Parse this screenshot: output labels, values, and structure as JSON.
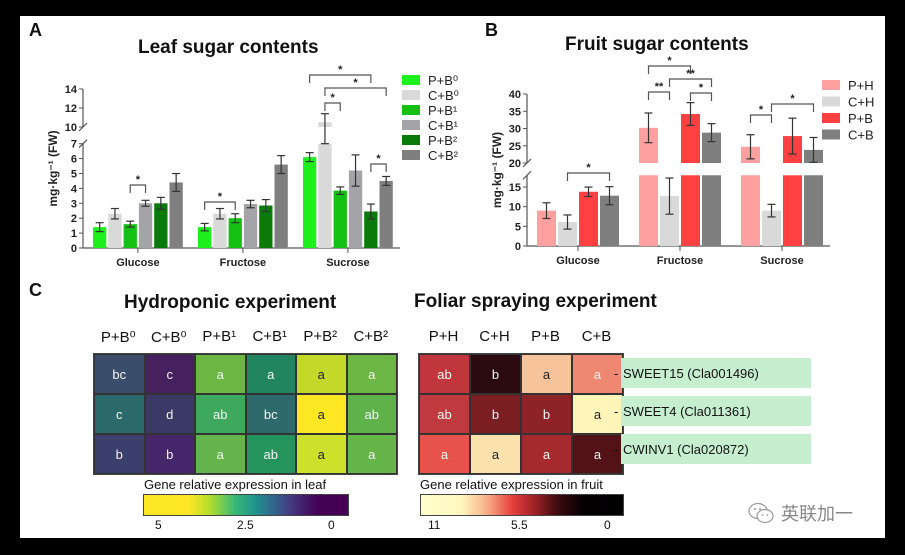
{
  "panels": {
    "A_label": "A",
    "B_label": "B",
    "C_label": "C"
  },
  "chart_data": [
    {
      "type": "bar",
      "title": "Leaf sugar contents",
      "xlabel": "",
      "ylabel": "mg·kg⁻¹ (FW)",
      "categories": [
        "Glucose",
        "Fructose",
        "Sucrose"
      ],
      "axis_break": {
        "lower": [
          0,
          7
        ],
        "upper": [
          10,
          14
        ]
      },
      "yticks_lower": [
        0,
        1,
        2,
        3,
        4,
        5,
        6,
        7
      ],
      "yticks_upper": [
        10,
        12,
        14
      ],
      "legend_position": "right",
      "series": [
        {
          "name": "P+B⁰",
          "color": "#1ef01e",
          "values": [
            1.4,
            1.4,
            6.1
          ],
          "errors": [
            0.3,
            0.25,
            0.3
          ]
        },
        {
          "name": "C+B⁰",
          "color": "#d9d9d9",
          "values": [
            2.3,
            2.3,
            10.5
          ],
          "errors": [
            0.35,
            0.35,
            0.9
          ]
        },
        {
          "name": "P+B¹",
          "color": "#13c013",
          "values": [
            1.6,
            2.0,
            3.85
          ],
          "errors": [
            0.2,
            0.3,
            0.25
          ]
        },
        {
          "name": "C+B¹",
          "color": "#a3a3a8",
          "values": [
            3.0,
            2.95,
            5.2
          ],
          "errors": [
            0.2,
            0.25,
            1.05
          ]
        },
        {
          "name": "P+B²",
          "color": "#0a7a0a",
          "values": [
            3.0,
            2.85,
            2.45
          ],
          "errors": [
            0.4,
            0.4,
            0.5
          ]
        },
        {
          "name": "C+B²",
          "color": "#7f7f7f",
          "values": [
            4.4,
            5.6,
            4.5
          ],
          "errors": [
            0.6,
            0.6,
            0.3
          ]
        }
      ],
      "significance": [
        {
          "category": "Glucose",
          "from": "P+B¹",
          "to": "C+B¹",
          "label": "*"
        },
        {
          "category": "Fructose",
          "from": "P+B⁰",
          "to": "P+B¹",
          "label": "*"
        },
        {
          "category": "Sucrose",
          "from": "P+B⁰",
          "to": "P+B²",
          "label": "*"
        },
        {
          "category": "Sucrose",
          "from": "C+B⁰",
          "to": "C+B²",
          "label": "*"
        },
        {
          "category": "Sucrose",
          "from": "C+B⁰",
          "to": "P+B¹",
          "label": "*"
        },
        {
          "category": "Sucrose",
          "from": "P+B²",
          "to": "C+B²",
          "label": "*"
        }
      ]
    },
    {
      "type": "bar",
      "title": "Fruit sugar contents",
      "xlabel": "",
      "ylabel": "mg·kg⁻¹ (FW)",
      "categories": [
        "Glucose",
        "Fructose",
        "Sucrose"
      ],
      "axis_break": {
        "lower": [
          0,
          18
        ],
        "upper": [
          20,
          40
        ]
      },
      "yticks_lower": [
        0,
        5,
        10,
        15
      ],
      "yticks_upper": [
        20,
        25,
        30,
        35,
        40
      ],
      "legend_position": "right",
      "series": [
        {
          "name": "P+H",
          "color": "#ffa0a0",
          "values": [
            9.0,
            30.2,
            24.7
          ],
          "errors": [
            2.0,
            4.3,
            3.5
          ]
        },
        {
          "name": "C+H",
          "color": "#d9d9d9",
          "values": [
            6.1,
            12.7,
            9.0
          ],
          "errors": [
            1.8,
            4.6,
            1.6
          ]
        },
        {
          "name": "P+B",
          "color": "#ff4040",
          "values": [
            13.8,
            34.2,
            27.8
          ],
          "errors": [
            1.2,
            3.3,
            5.2
          ]
        },
        {
          "name": "C+B",
          "color": "#7f7f7f",
          "values": [
            12.8,
            28.8,
            23.8
          ],
          "errors": [
            2.3,
            2.6,
            3.6
          ]
        }
      ],
      "significance": [
        {
          "category": "Glucose",
          "from": "C+H",
          "to": "C+B",
          "label": "*"
        },
        {
          "category": "Fructose",
          "from": "P+H",
          "to": "C+H",
          "label": "**"
        },
        {
          "category": "Fructose",
          "from": "P+H",
          "to": "P+B",
          "label": "*"
        },
        {
          "category": "Fructose",
          "from": "C+H",
          "to": "C+B",
          "label": "**"
        },
        {
          "category": "Fructose",
          "from": "P+B",
          "to": "C+B",
          "label": "*"
        },
        {
          "category": "Sucrose",
          "from": "P+H",
          "to": "C+H",
          "label": "*"
        },
        {
          "category": "Sucrose",
          "from": "C+H",
          "to": "C+B",
          "label": "*"
        }
      ]
    },
    {
      "type": "heatmap",
      "title": "Hydroponic experiment",
      "columns": [
        "P+B⁰",
        "C+B⁰",
        "P+B¹",
        "C+B¹",
        "P+B²",
        "C+B²"
      ],
      "rows": [
        "SWEET15 (Cla001496)",
        "SWEET4 (Cla011361)",
        "CWINV1 (Cla020872)"
      ],
      "colors": [
        [
          "#3a4d6b",
          "#46205f",
          "#6cb644",
          "#21865f",
          "#c3d92a",
          "#6cb644"
        ],
        [
          "#2b6a6a",
          "#3b3a66",
          "#3ea85c",
          "#2e6a6b",
          "#fce722",
          "#5fb24a"
        ],
        [
          "#3b3f6e",
          "#45266a",
          "#64b54c",
          "#24945c",
          "#cde02a",
          "#66b548"
        ]
      ],
      "letters": [
        [
          "bc",
          "c",
          "a",
          "a",
          "a",
          "a"
        ],
        [
          "c",
          "d",
          "ab",
          "bc",
          "a",
          "ab"
        ],
        [
          "b",
          "b",
          "a",
          "ab",
          "a",
          "a"
        ]
      ],
      "colorbar": {
        "title": "Gene relative expression in leaf",
        "ticks": [
          "5",
          "2.5",
          "0"
        ],
        "range": [
          5,
          0
        ]
      }
    },
    {
      "type": "heatmap",
      "title": "Foliar spraying experiment",
      "columns": [
        "P+H",
        "C+H",
        "P+B",
        "C+B"
      ],
      "rows": [
        "SWEET15 (Cla001496)",
        "SWEET4 (Cla011361)",
        "CWINV1 (Cla020872)"
      ],
      "colors": [
        [
          "#c0363c",
          "#2a0a0e",
          "#f7c39a",
          "#ef8872"
        ],
        [
          "#bf3a3f",
          "#7a1e22",
          "#8e2327",
          "#fff5b8"
        ],
        [
          "#e8524c",
          "#fbe2ad",
          "#a42a2e",
          "#521218"
        ]
      ],
      "letters": [
        [
          "ab",
          "b",
          "a",
          "a"
        ],
        [
          "ab",
          "b",
          "b",
          "a"
        ],
        [
          "a",
          "a",
          "a",
          "a"
        ]
      ],
      "colorbar": {
        "title": "Gene relative expression in fruit",
        "ticks": [
          "11",
          "5.5",
          "0"
        ],
        "range": [
          11,
          0
        ]
      }
    }
  ],
  "genes": [
    "SWEET15 (Cla001496)",
    "SWEET4 (Cla011361)",
    "CWINV1 (Cla020872)"
  ],
  "watermark": {
    "icon": "wechat-icon",
    "text": "英联加一"
  }
}
